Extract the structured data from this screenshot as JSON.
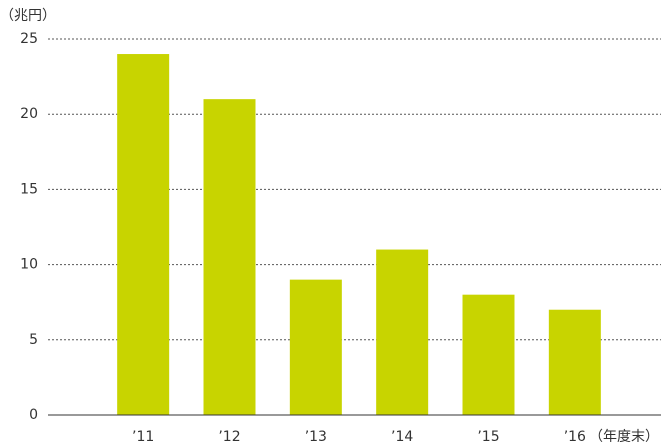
{
  "chart_data": {
    "type": "bar",
    "y_label": "（兆円）",
    "x_label": "（年度末）",
    "categories": [
      "’11",
      "’12",
      "’13",
      "’14",
      "’15",
      "’16"
    ],
    "values": [
      24,
      21,
      9,
      11,
      8,
      7
    ],
    "color": "#c8d400",
    "ylim": [
      0,
      25
    ],
    "yticks": [
      0,
      5,
      10,
      15,
      20,
      25
    ],
    "grid": true
  }
}
